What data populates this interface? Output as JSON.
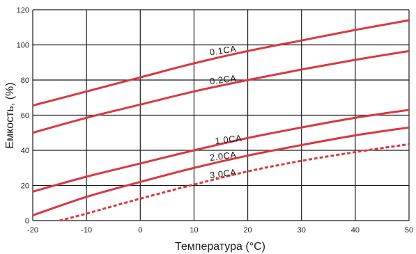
{
  "chart_data": {
    "type": "line",
    "title": "",
    "xlabel": "Температура (°С)",
    "ylabel": "Емкость, (%)",
    "xlim": [
      -20,
      50
    ],
    "ylim": [
      0,
      120
    ],
    "xticks": [
      "-20",
      "-10",
      "0",
      "10",
      "20",
      "30",
      "40",
      "50"
    ],
    "yticks": [
      "0",
      "20",
      "40",
      "60",
      "80",
      "100",
      "120"
    ],
    "grid": true,
    "colors": {
      "curve": "#d9383f",
      "grid": "#1a1a1a",
      "text": "#1a1a1a"
    },
    "series": [
      {
        "name": "0.1CA",
        "style": "solid",
        "x": [
          -20,
          -10,
          0,
          10,
          20,
          30,
          40,
          50
        ],
        "values": [
          65.5,
          73.5,
          81.5,
          89.5,
          96.5,
          102.5,
          108.5,
          114
        ]
      },
      {
        "name": "0.2CA",
        "style": "solid",
        "x": [
          -20,
          -10,
          0,
          10,
          20,
          30,
          40,
          50
        ],
        "values": [
          50,
          58.5,
          66,
          73.5,
          80,
          86,
          91.5,
          96.5
        ]
      },
      {
        "name": "1.0CA",
        "style": "solid",
        "x": [
          -20,
          -10,
          0,
          10,
          20,
          30,
          40,
          50
        ],
        "values": [
          16.5,
          25,
          32.5,
          40,
          47,
          53,
          58.5,
          63
        ]
      },
      {
        "name": "2.0CA",
        "style": "solid",
        "x": [
          -20,
          -10,
          0,
          10,
          20,
          30,
          40,
          50
        ],
        "values": [
          3,
          13.5,
          22,
          30,
          37,
          43,
          48.5,
          53
        ]
      },
      {
        "name": "3.0CA",
        "style": "dashed",
        "x": [
          -15,
          -10,
          0,
          10,
          20,
          30,
          40,
          50
        ],
        "values": [
          0,
          4,
          12.5,
          20.5,
          28,
          34,
          39,
          43.5
        ]
      }
    ],
    "labels": [
      {
        "text": "0.1CA",
        "x": 13,
        "y": 94,
        "rotate": -8
      },
      {
        "text": "0.2CA",
        "x": 13,
        "y": 77.5,
        "rotate": -7
      },
      {
        "text": "1.0CA",
        "x": 14,
        "y": 43.5,
        "rotate": -7
      },
      {
        "text": "2.0CA",
        "x": 13,
        "y": 34,
        "rotate": -7
      },
      {
        "text": "3.0CA",
        "x": 13,
        "y": 24,
        "rotate": -7
      }
    ]
  }
}
